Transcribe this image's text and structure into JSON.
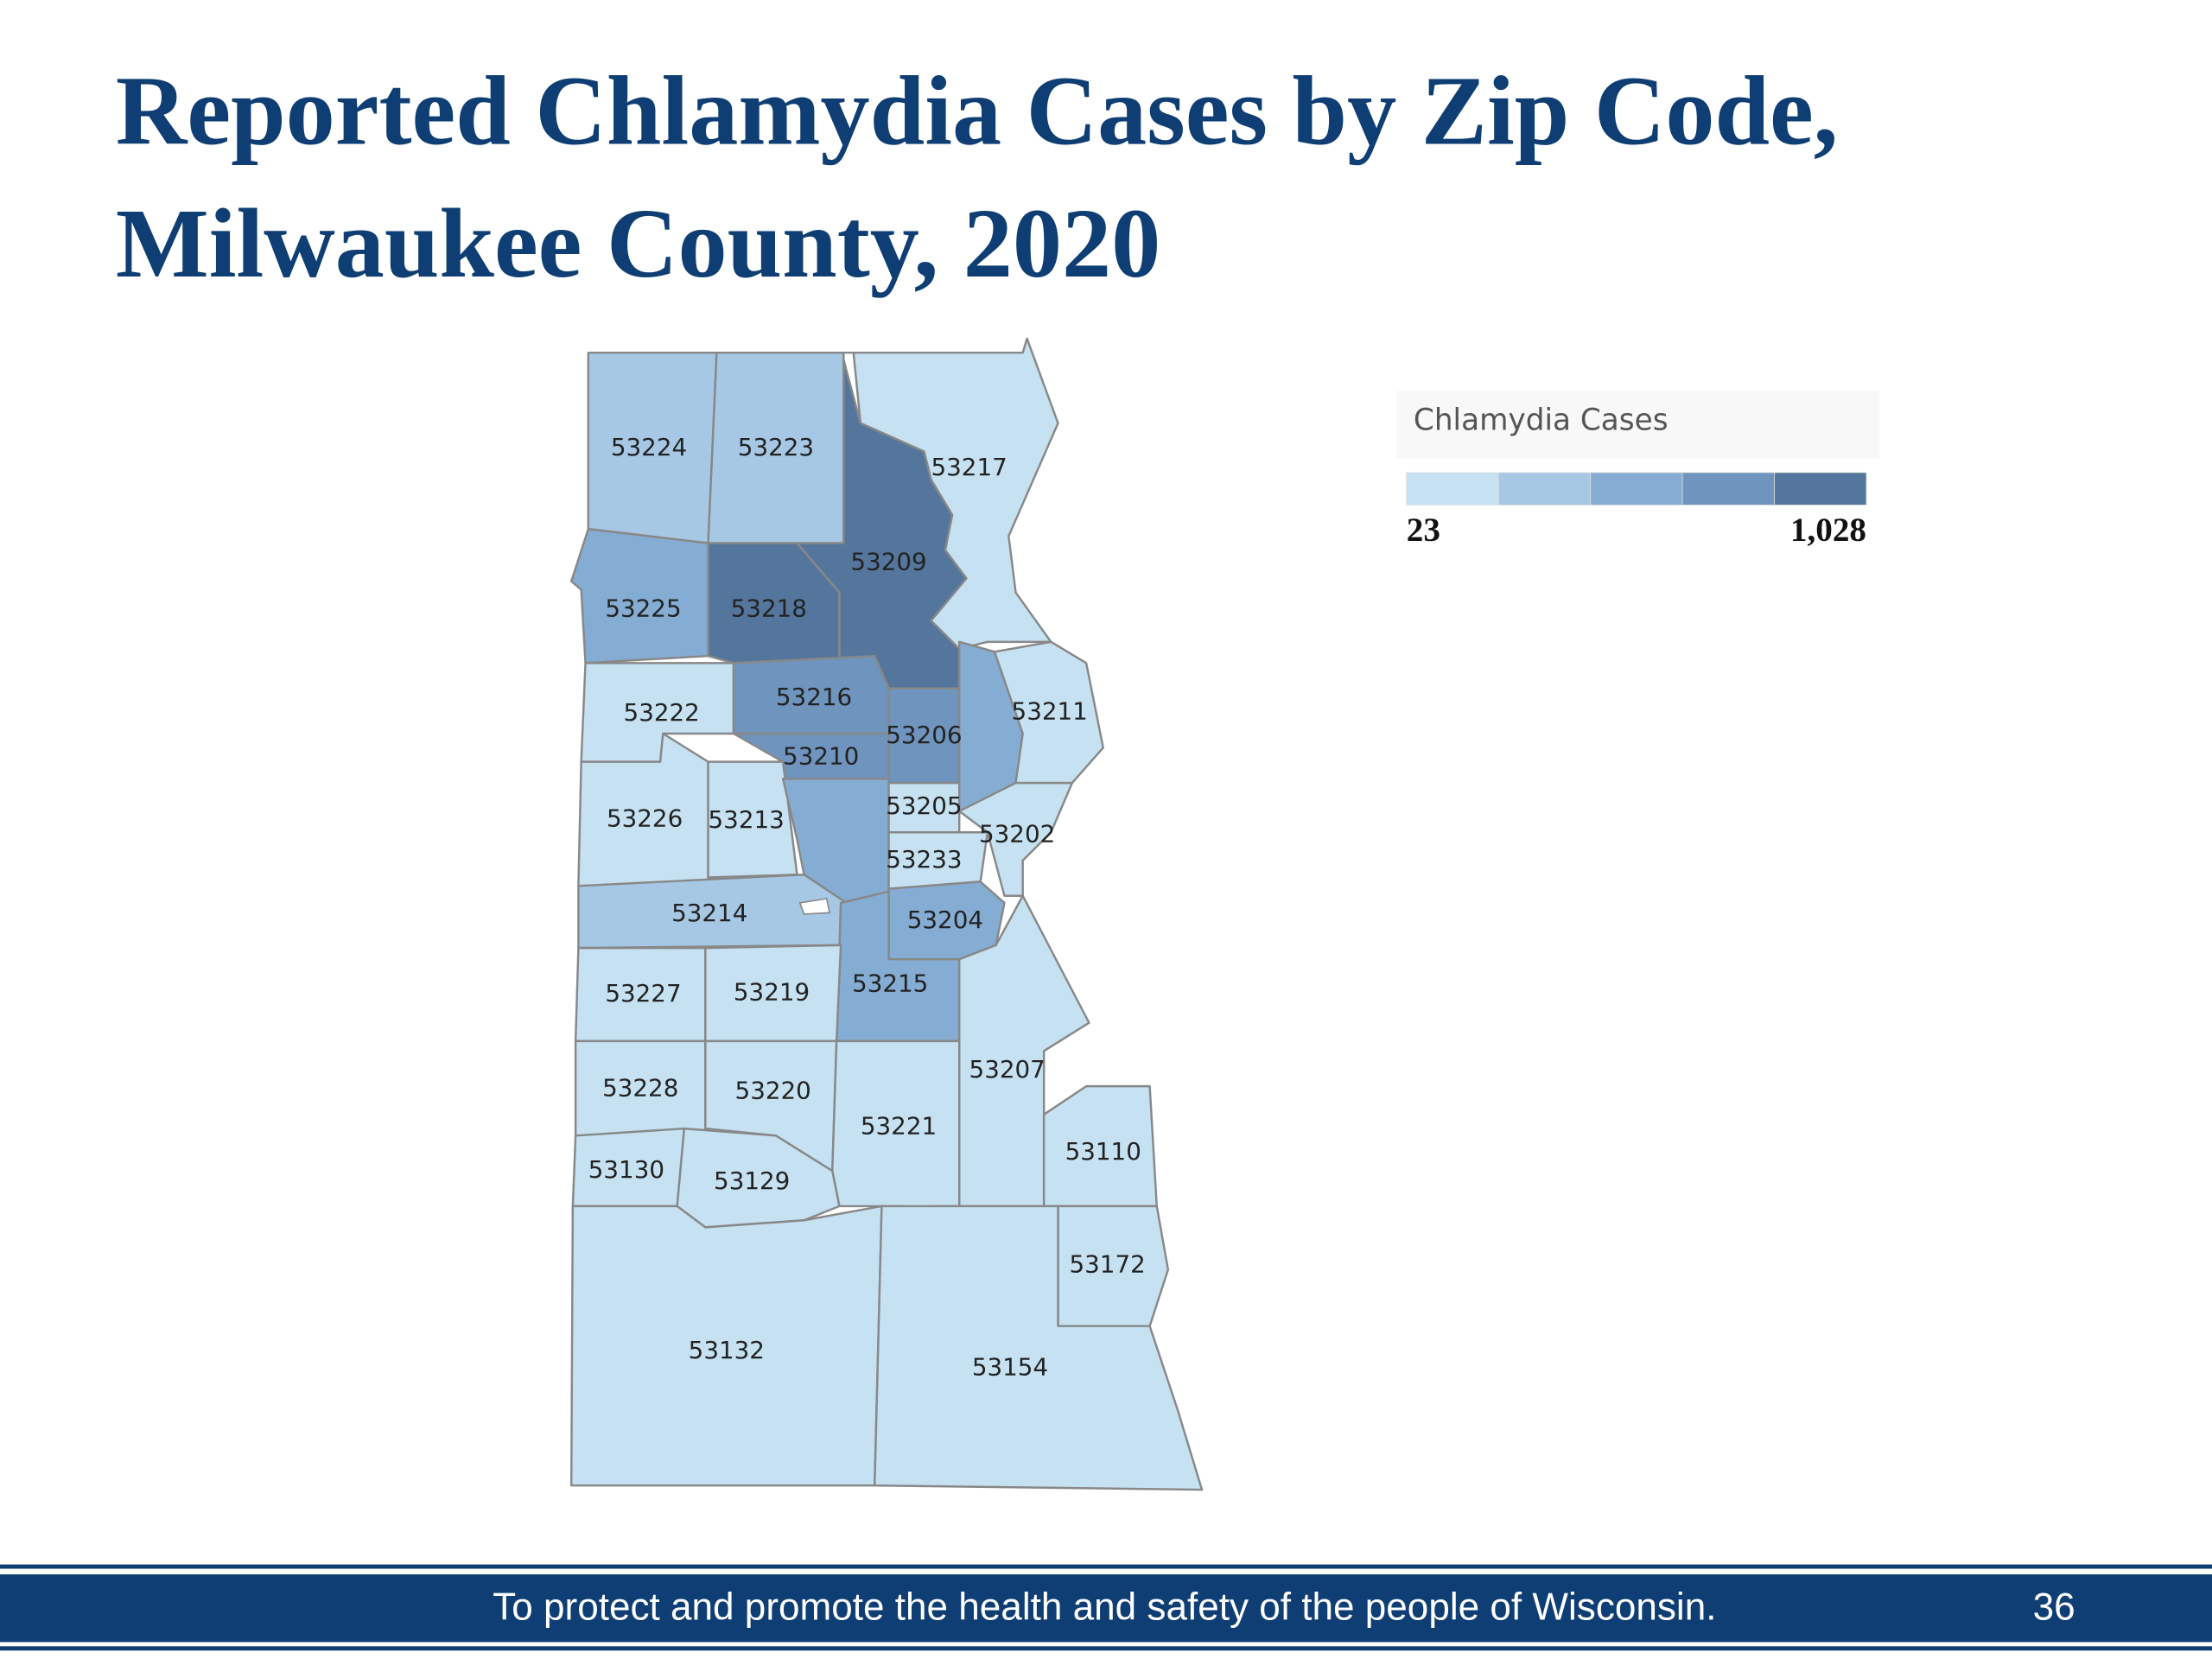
{
  "header": {
    "title": [
      "Reported Chlamydia Cases by Zip Code,",
      "Milwaukee County, 2020"
    ]
  },
  "legend": {
    "title": "Chlamydia Cases",
    "min": 23,
    "max": {
      "value": 1028,
      "label": "1,028"
    },
    "colors": [
      "#c6e2f2",
      "#a6c8e4",
      "#85acd2",
      "#6f94be",
      "#55769c"
    ]
  },
  "regions": [
    {
      "label": "53224",
      "color": "#a6c8e4"
    },
    {
      "label": "53223",
      "color": "#a6c8e4"
    },
    {
      "label": "53217",
      "color": "#c6e2f2"
    },
    {
      "label": "53209",
      "color": "#55769c"
    },
    {
      "label": "53225",
      "color": "#85acd2"
    },
    {
      "label": "53218",
      "color": "#55769c"
    },
    {
      "label": "53222",
      "color": "#c6e2f2"
    },
    {
      "label": "53216",
      "color": "#6f94be"
    },
    {
      "label": "53210",
      "color": "#6f94be"
    },
    {
      "label": "53206",
      "color": "#6f94be"
    },
    {
      "label": "53211",
      "color": "#c6e2f2"
    },
    {
      "label": "53226",
      "color": "#c6e2f2"
    },
    {
      "label": "53213",
      "color": "#c6e2f2"
    },
    {
      "label": "53205",
      "color": "#c6e2f2"
    },
    {
      "label": "53202",
      "color": "#c6e2f2"
    },
    {
      "label": "53233",
      "color": "#c6e2f2"
    },
    {
      "label": "53214",
      "color": "#a6c8e4"
    },
    {
      "label": "53204",
      "color": "#85acd2"
    },
    {
      "label": "53215",
      "color": "#85acd2"
    },
    {
      "label": "53227",
      "color": "#c6e2f2"
    },
    {
      "label": "53219",
      "color": "#c6e2f2"
    },
    {
      "label": "53207",
      "color": "#c6e2f2"
    },
    {
      "label": "53228",
      "color": "#c6e2f2"
    },
    {
      "label": "53220",
      "color": "#c6e2f2"
    },
    {
      "label": "53221",
      "color": "#c6e2f2"
    },
    {
      "label": "53110",
      "color": "#c6e2f2"
    },
    {
      "label": "53130",
      "color": "#c6e2f2"
    },
    {
      "label": "53129",
      "color": "#c6e2f2"
    },
    {
      "label": "53172",
      "color": "#c6e2f2"
    },
    {
      "label": "53132",
      "color": "#c6e2f2"
    },
    {
      "label": "53154",
      "color": "#c6e2f2"
    }
  ],
  "footer": {
    "text": "To protect and promote the health and safety of the people of Wisconsin.",
    "page": 36
  }
}
